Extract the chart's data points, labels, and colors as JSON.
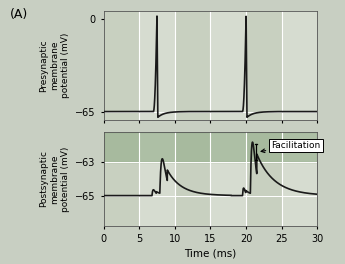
{
  "title_label": "(A)",
  "fig_bg_color": "#c8cfc2",
  "plot_bg_light": "#d6dcd0",
  "plot_bg_dark": "#c8d0c0",
  "post_band_color": "#8ca882",
  "grid_line_color": "#ffffff",
  "line_color": "#1a1a1a",
  "line_width": 1.2,
  "xlim": [
    0,
    30
  ],
  "pre_ylim": [
    -71,
    6
  ],
  "post_ylim": [
    -66.8,
    -61.2
  ],
  "pre_yticks": [
    0,
    -65
  ],
  "post_yticks": [
    -63,
    -65
  ],
  "xticks": [
    0,
    5,
    10,
    15,
    20,
    25,
    30
  ],
  "xlabel": "Time (ms)",
  "pre_ylabel": "Presynaptic\nmembrane\npotential (mV)",
  "post_ylabel": "Postsynaptic\nmembrane\npotential (mV)",
  "facilitation_label": "Facilitation",
  "spike1_time": 7.5,
  "spike2_time": 20.0,
  "spike_peak": 3.0,
  "spike_trough": -69.0,
  "rest": -65.0,
  "post_epsp1_small_t": 6.8,
  "post_epsp1_small_amp": 0.35,
  "post_epsp1_large_t": 7.9,
  "post_epsp1_large_amp": 2.1,
  "post_epsp2_small_t": 19.5,
  "post_epsp2_small_amp": 0.45,
  "post_epsp2_large_t": 20.6,
  "post_epsp2_large_amp": 3.1
}
